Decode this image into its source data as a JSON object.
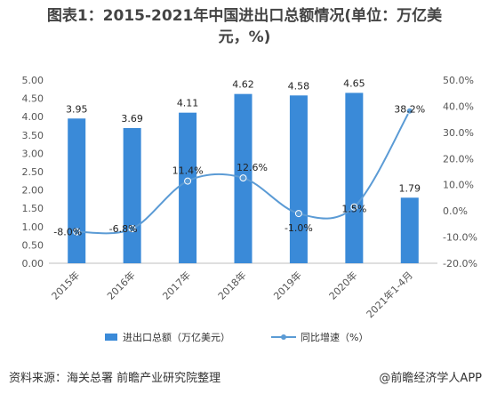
{
  "header": {
    "title_line1": "图表1：2015-2021年中国进出口总额情况(单位：万亿美",
    "title_line2": "元，%)"
  },
  "footer": {
    "source": "资料来源：海关总署 前瞻产业研究院整理",
    "brand": "@前瞻经济学人APP"
  },
  "chart_data": {
    "type": "bar",
    "title": "图表1：2015-2021年中国进出口总额情况(单位：万亿美元，%)",
    "categories": [
      "2015年",
      "2016年",
      "2017年",
      "2018年",
      "2019年",
      "2020年",
      "2021年1-4月"
    ],
    "series": [
      {
        "name": "进出口总额（万亿美元）",
        "type": "bar",
        "axis": "left",
        "values": [
          3.95,
          3.69,
          4.11,
          4.62,
          4.58,
          4.65,
          1.79
        ],
        "labels": [
          "3.95",
          "3.69",
          "4.11",
          "4.62",
          "4.58",
          "4.65",
          "1.79"
        ],
        "color": "#3a8ad8"
      },
      {
        "name": "同比增速（%）",
        "type": "line",
        "axis": "right",
        "values": [
          -8.0,
          -6.8,
          11.4,
          12.6,
          -1.0,
          1.5,
          38.2
        ],
        "labels": [
          "-8.0%",
          "-6.8%",
          "11.4%",
          "12.6%",
          "-1.0%",
          "1.5%",
          "38.2%"
        ],
        "color": "#5b9bd5"
      }
    ],
    "y_left": {
      "min": 0,
      "max": 5,
      "ticks": [
        "0.00",
        "0.50",
        "1.00",
        "1.50",
        "2.00",
        "2.50",
        "3.00",
        "3.50",
        "4.00",
        "4.50",
        "5.00"
      ]
    },
    "y_right": {
      "min": -20,
      "max": 50,
      "ticks": [
        "-20.0%",
        "-10.0%",
        "0.0%",
        "10.0%",
        "20.0%",
        "30.0%",
        "40.0%",
        "50.0%"
      ]
    },
    "grid": false,
    "legend": "bottom"
  }
}
